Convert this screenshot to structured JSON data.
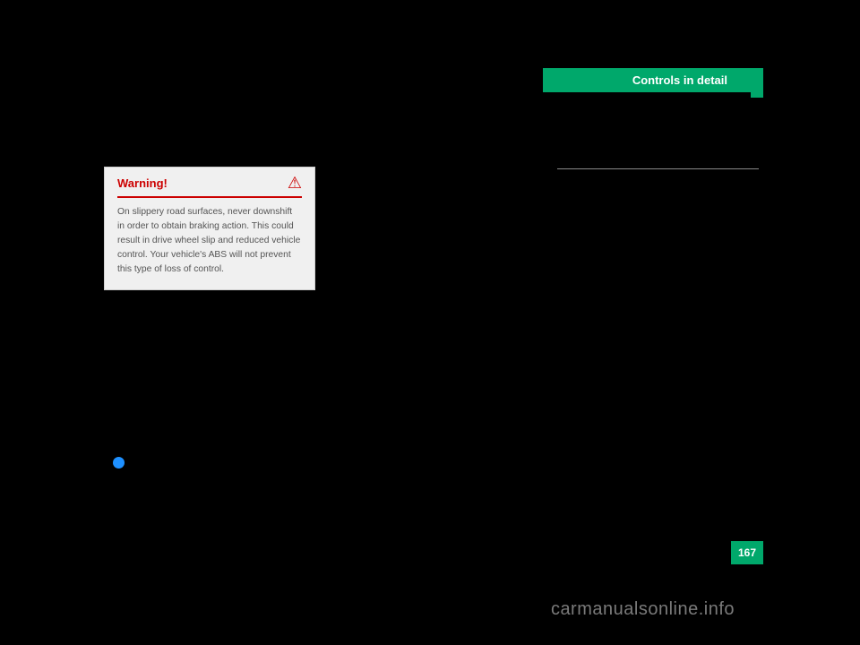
{
  "header": {
    "tab_label": "Controls in detail",
    "tab_bg": "#00a86b",
    "tab_color": "#ffffff"
  },
  "warning": {
    "title": "Warning!",
    "title_color": "#cc0000",
    "icon_glyph": "⚠",
    "body": "On slippery road surfaces, never downshift in order to obtain braking action. This could result in drive wheel slip and reduced vehicle control. Your vehicle's ABS will not prevent this type of loss of control.",
    "bg": "#f0f0f0",
    "text_color": "#545454"
  },
  "bullet": {
    "color": "#1e90ff"
  },
  "underline": {
    "color": "#888888"
  },
  "page": {
    "number": "167",
    "bg": "#00a86b",
    "color": "#ffffff"
  },
  "watermark": {
    "text": "carmanualsonline.info",
    "color": "#7a7a7a"
  }
}
